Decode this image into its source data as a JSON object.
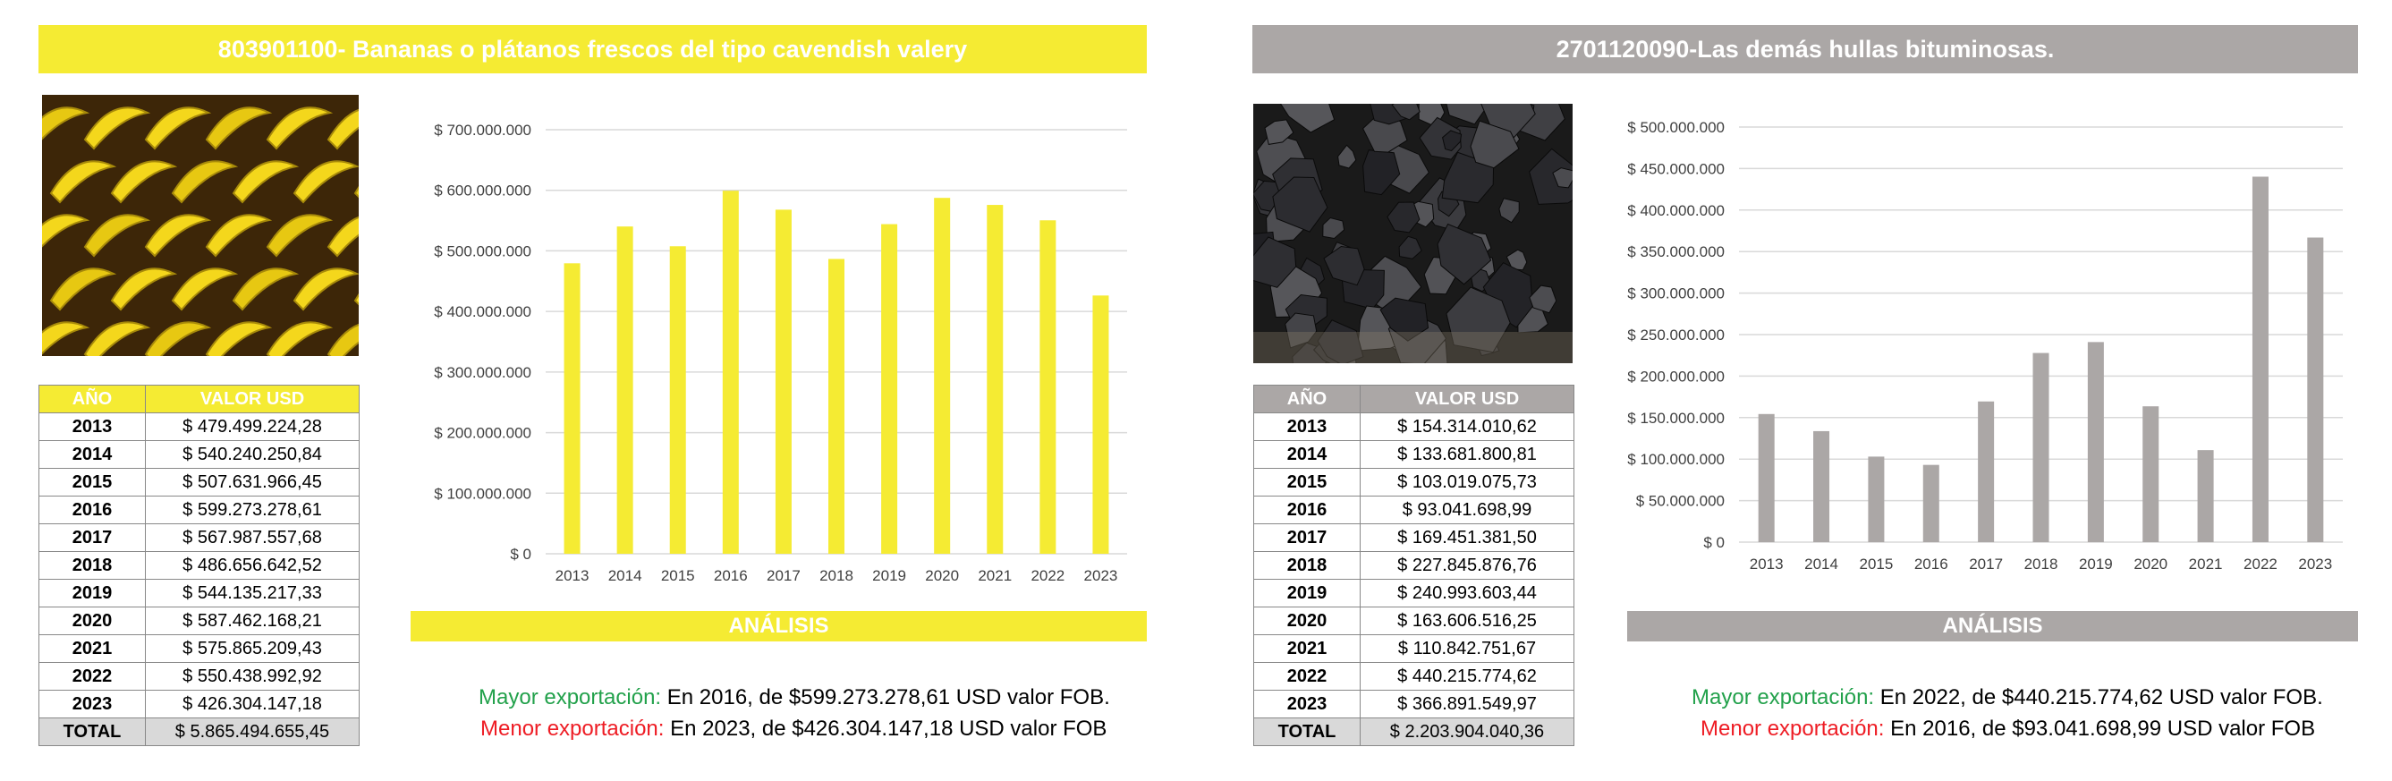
{
  "colors": {
    "yellow": "#f5eb33",
    "gray": "#aba7a6",
    "green": "#22a14b",
    "red": "#ee1c24"
  },
  "left": {
    "title": "803901100- Bananas o plátanos frescos del tipo cavendish valery",
    "photo": "banana-photo",
    "table": {
      "headers": [
        "AÑO",
        "VALOR USD"
      ],
      "rows": [
        [
          "2013",
          "$ 479.499.224,28"
        ],
        [
          "2014",
          "$ 540.240.250,84"
        ],
        [
          "2015",
          "$ 507.631.966,45"
        ],
        [
          "2016",
          "$ 599.273.278,61"
        ],
        [
          "2017",
          "$ 567.987.557,68"
        ],
        [
          "2018",
          "$ 486.656.642,52"
        ],
        [
          "2019",
          "$ 544.135.217,33"
        ],
        [
          "2020",
          "$ 587.462.168,21"
        ],
        [
          "2021",
          "$ 575.865.209,43"
        ],
        [
          "2022",
          "$ 550.438.992,92"
        ],
        [
          "2023",
          "$ 426.304.147,18"
        ]
      ],
      "total_label": "TOTAL",
      "total_value": "$ 5.865.494.655,45"
    },
    "analysis_title": "ANÁLISIS",
    "mayor_label": "Mayor exportación:",
    "mayor_text": " En 2016, de $599.273.278,61 USD valor FOB.",
    "menor_label": "Menor exportación:",
    "menor_text": " En 2023, de $426.304.147,18 USD valor FOB"
  },
  "right": {
    "title": "2701120090-Las demás hullas bituminosas.",
    "photo": "coal-photo",
    "table": {
      "headers": [
        "AÑO",
        "VALOR USD"
      ],
      "rows": [
        [
          "2013",
          "$ 154.314.010,62"
        ],
        [
          "2014",
          "$ 133.681.800,81"
        ],
        [
          "2015",
          "$ 103.019.075,73"
        ],
        [
          "2016",
          "$ 93.041.698,99"
        ],
        [
          "2017",
          "$ 169.451.381,50"
        ],
        [
          "2018",
          "$ 227.845.876,76"
        ],
        [
          "2019",
          "$ 240.993.603,44"
        ],
        [
          "2020",
          "$ 163.606.516,25"
        ],
        [
          "2021",
          "$ 110.842.751,67"
        ],
        [
          "2022",
          "$ 440.215.774,62"
        ],
        [
          "2023",
          "$ 366.891.549,97"
        ]
      ],
      "total_label": "TOTAL",
      "total_value": "$ 2.203.904.040,36"
    },
    "analysis_title": "ANÁLISIS",
    "mayor_label": "Mayor exportación:",
    "mayor_text": " En 2022, de $440.215.774,62 USD valor FOB.",
    "menor_label": "Menor exportación:",
    "menor_text": " En 2016, de $93.041.698,99 USD valor FOB"
  },
  "chart_data": [
    {
      "type": "bar",
      "title": "",
      "xlabel": "",
      "ylabel": "",
      "color": "#f5eb33",
      "grid": true,
      "categories": [
        "2013",
        "2014",
        "2015",
        "2016",
        "2017",
        "2018",
        "2019",
        "2020",
        "2021",
        "2022",
        "2023"
      ],
      "values": [
        479499224.28,
        540240250.84,
        507631966.45,
        599273278.61,
        567987557.68,
        486656642.52,
        544135217.33,
        587462168.21,
        575865209.43,
        550438992.92,
        426304147.18
      ],
      "ylim": [
        0,
        700000000
      ],
      "yticks": [
        0,
        100000000,
        200000000,
        300000000,
        400000000,
        500000000,
        600000000,
        700000000
      ],
      "ytick_labels": [
        "$ 0",
        "$ 100.000.000",
        "$ 200.000.000",
        "$ 300.000.000",
        "$ 400.000.000",
        "$ 500.000.000",
        "$ 600.000.000",
        "$ 700.000.000"
      ]
    },
    {
      "type": "bar",
      "title": "",
      "xlabel": "",
      "ylabel": "",
      "color": "#aba7a6",
      "grid": true,
      "categories": [
        "2013",
        "2014",
        "2015",
        "2016",
        "2017",
        "2018",
        "2019",
        "2020",
        "2021",
        "2022",
        "2023"
      ],
      "values": [
        154314010.62,
        133681800.81,
        103019075.73,
        93041698.99,
        169451381.5,
        227845876.76,
        240993603.44,
        163606516.25,
        110842751.67,
        440215774.62,
        366891549.97
      ],
      "ylim": [
        0,
        500000000
      ],
      "yticks": [
        0,
        50000000,
        100000000,
        150000000,
        200000000,
        250000000,
        300000000,
        350000000,
        400000000,
        450000000,
        500000000
      ],
      "ytick_labels": [
        "$ 0",
        "$ 50.000.000",
        "$ 100.000.000",
        "$ 150.000.000",
        "$ 200.000.000",
        "$ 250.000.000",
        "$ 300.000.000",
        "$ 350.000.000",
        "$ 400.000.000",
        "$ 450.000.000",
        "$ 500.000.000"
      ]
    }
  ]
}
